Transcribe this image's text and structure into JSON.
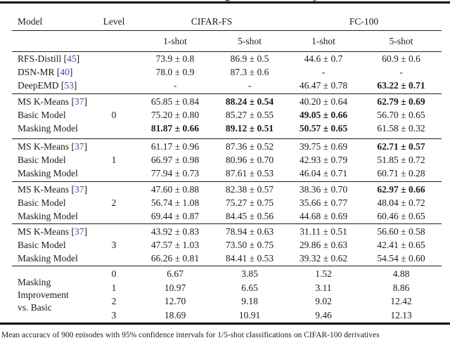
{
  "page": {
    "top_clipped_fragments": [
      "g",
      "p"
    ],
    "caption_clipped": "Mean accuracy of 900 episodes with 95% confidence intervals for 1/5-shot classifications on CIFAR-100 derivatives"
  },
  "colors": {
    "text": "#1b1b1b",
    "citation": "#3b50a3",
    "rule": "#1f1f1f"
  },
  "table": {
    "cite_brackets": {
      "open": "[",
      "close": "]"
    },
    "header": {
      "model": "Model",
      "level": "Level",
      "group1": "CIFAR-FS",
      "group2": "FC-100",
      "subcols": [
        "1-shot",
        "5-shot",
        "1-shot",
        "5-shot"
      ]
    },
    "groups": [
      {
        "rows": [
          {
            "model": "RFS-Distill",
            "cite": "45",
            "level": "",
            "vals": [
              {
                "t": "73.9 ± 0.8",
                "b": false
              },
              {
                "t": "86.9 ± 0.5",
                "b": false
              },
              {
                "t": "44.6 ± 0.7",
                "b": false
              },
              {
                "t": "60.9 ± 0.6",
                "b": false
              }
            ]
          },
          {
            "model": "DSN-MR",
            "cite": "40",
            "level": "",
            "vals": [
              {
                "t": "78.0 ± 0.9",
                "b": false
              },
              {
                "t": "87.3 ± 0.6",
                "b": false
              },
              {
                "t": "-",
                "b": false
              },
              {
                "t": "-",
                "b": false
              }
            ]
          },
          {
            "model": "DeepEMD",
            "cite": "53",
            "level": "",
            "vals": [
              {
                "t": "-",
                "b": false
              },
              {
                "t": "-",
                "b": false
              },
              {
                "t": "46.47 ± 0.78",
                "b": false
              },
              {
                "t": "63.22 ± 0.71",
                "b": true
              }
            ]
          }
        ]
      },
      {
        "rows": [
          {
            "model": "MS K-Means",
            "cite": "37",
            "level": "",
            "vals": [
              {
                "t": "65.85 ± 0.84",
                "b": false
              },
              {
                "t": "88.24 ± 0.54",
                "b": true
              },
              {
                "t": "40.20 ± 0.64",
                "b": false
              },
              {
                "t": "62.79 ± 0.69",
                "b": true
              }
            ]
          },
          {
            "model": "Basic Model",
            "cite": "",
            "level": "0",
            "vals": [
              {
                "t": "75.20 ± 0.80",
                "b": false
              },
              {
                "t": "85.27 ± 0.55",
                "b": false
              },
              {
                "t": "49.05 ± 0.66",
                "b": true
              },
              {
                "t": "56.70 ± 0.65",
                "b": false
              }
            ]
          },
          {
            "model": "Masking Model",
            "cite": "",
            "level": "",
            "vals": [
              {
                "t": "81.87 ± 0.66",
                "b": true
              },
              {
                "t": "89.12 ± 0.51",
                "b": true
              },
              {
                "t": "50.57 ± 0.65",
                "b": true
              },
              {
                "t": "61.58 ± 0.32",
                "b": false
              }
            ]
          }
        ]
      },
      {
        "rows": [
          {
            "model": "MS K-Means",
            "cite": "37",
            "level": "",
            "vals": [
              {
                "t": "61.17 ± 0.96",
                "b": false
              },
              {
                "t": "87.36 ± 0.52",
                "b": false
              },
              {
                "t": "39.75 ± 0.69",
                "b": false
              },
              {
                "t": "62.71 ± 0.57",
                "b": true
              }
            ]
          },
          {
            "model": "Basic Model",
            "cite": "",
            "level": "1",
            "vals": [
              {
                "t": "66.97 ± 0.98",
                "b": false
              },
              {
                "t": "80.96 ± 0.70",
                "b": false
              },
              {
                "t": "42.93 ± 0.79",
                "b": false
              },
              {
                "t": "51.85 ± 0.72",
                "b": false
              }
            ]
          },
          {
            "model": "Masking Model",
            "cite": "",
            "level": "",
            "vals": [
              {
                "t": "77.94 ± 0.73",
                "b": false
              },
              {
                "t": "87.61 ± 0.53",
                "b": false
              },
              {
                "t": "46.04 ± 0.71",
                "b": false
              },
              {
                "t": "60.71 ± 0.28",
                "b": false
              }
            ]
          }
        ]
      },
      {
        "rows": [
          {
            "model": "MS K-Means",
            "cite": "37",
            "level": "",
            "vals": [
              {
                "t": "47.60 ± 0.88",
                "b": false
              },
              {
                "t": "82.38 ± 0.57",
                "b": false
              },
              {
                "t": "38.36 ± 0.70",
                "b": false
              },
              {
                "t": "62.97 ± 0.66",
                "b": true
              }
            ]
          },
          {
            "model": "Basic Model",
            "cite": "",
            "level": "2",
            "vals": [
              {
                "t": "56.74 ± 1.08",
                "b": false
              },
              {
                "t": "75.27 ± 0.75",
                "b": false
              },
              {
                "t": "35.66 ± 0.77",
                "b": false
              },
              {
                "t": "48.04 ± 0.72",
                "b": false
              }
            ]
          },
          {
            "model": "Masking Model",
            "cite": "",
            "level": "",
            "vals": [
              {
                "t": "69.44 ± 0.87",
                "b": false
              },
              {
                "t": "84.45 ± 0.56",
                "b": false
              },
              {
                "t": "44.68 ± 0.69",
                "b": false
              },
              {
                "t": "60.46 ± 0.65",
                "b": false
              }
            ]
          }
        ]
      },
      {
        "rows": [
          {
            "model": "MS K-Means",
            "cite": "37",
            "level": "",
            "vals": [
              {
                "t": "43.92 ± 0.83",
                "b": false
              },
              {
                "t": "78.94 ± 0.63",
                "b": false
              },
              {
                "t": "31.11 ± 0.51",
                "b": false
              },
              {
                "t": "56.60 ± 0.58",
                "b": false
              }
            ]
          },
          {
            "model": "Basic Model",
            "cite": "",
            "level": "3",
            "vals": [
              {
                "t": "47.57 ± 1.03",
                "b": false
              },
              {
                "t": "73.50 ± 0.75",
                "b": false
              },
              {
                "t": "29.86 ± 0.63",
                "b": false
              },
              {
                "t": "42.41 ± 0.65",
                "b": false
              }
            ]
          },
          {
            "model": "Masking Model",
            "cite": "",
            "level": "",
            "vals": [
              {
                "t": "66.26 ± 0.81",
                "b": false
              },
              {
                "t": "84.41 ± 0.53",
                "b": false
              },
              {
                "t": "39.32 ± 0.62",
                "b": false
              },
              {
                "t": "54.54 ± 0.60",
                "b": false
              }
            ]
          }
        ]
      }
    ],
    "improvement": {
      "label_lines": [
        "Masking",
        "Improvement",
        "vs. Basic"
      ],
      "rows": [
        {
          "level": "0",
          "vals": [
            "6.67",
            "3.85",
            "1.52",
            "4.88"
          ]
        },
        {
          "level": "1",
          "vals": [
            "10.97",
            "6.65",
            "3.11",
            "8.86"
          ]
        },
        {
          "level": "2",
          "vals": [
            "12.70",
            "9.18",
            "9.02",
            "12.42"
          ]
        },
        {
          "level": "3",
          "vals": [
            "18.69",
            "10.91",
            "9.46",
            "12.13"
          ]
        }
      ]
    }
  }
}
